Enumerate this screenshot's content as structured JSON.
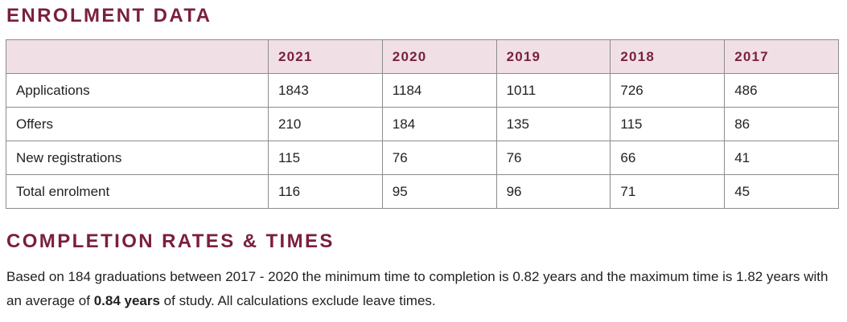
{
  "enrolment": {
    "title": "ENROLMENT DATA",
    "years": [
      "2021",
      "2020",
      "2019",
      "2018",
      "2017"
    ],
    "rows": [
      {
        "label": "Applications",
        "values": [
          "1843",
          "1184",
          "1011",
          "726",
          "486"
        ]
      },
      {
        "label": "Offers",
        "values": [
          "210",
          "184",
          "135",
          "115",
          "86"
        ]
      },
      {
        "label": "New registrations",
        "values": [
          "115",
          "76",
          "76",
          "66",
          "41"
        ]
      },
      {
        "label": "Total enrolment",
        "values": [
          "116",
          "95",
          "96",
          "71",
          "45"
        ]
      }
    ]
  },
  "completion": {
    "title": "COMPLETION RATES & TIMES",
    "text_before": "Based on 184 graduations between 2017 - 2020 the minimum time to completion is 0.82 years and the maximum time is 1.82 years with an average of ",
    "average_emphasis": "0.84 years",
    "text_after": " of study. All calculations exclude leave times."
  },
  "colors": {
    "heading": "#7a1f3d",
    "header_bg": "#f0e0e5",
    "border": "#8c8c8c",
    "text": "#222222"
  }
}
